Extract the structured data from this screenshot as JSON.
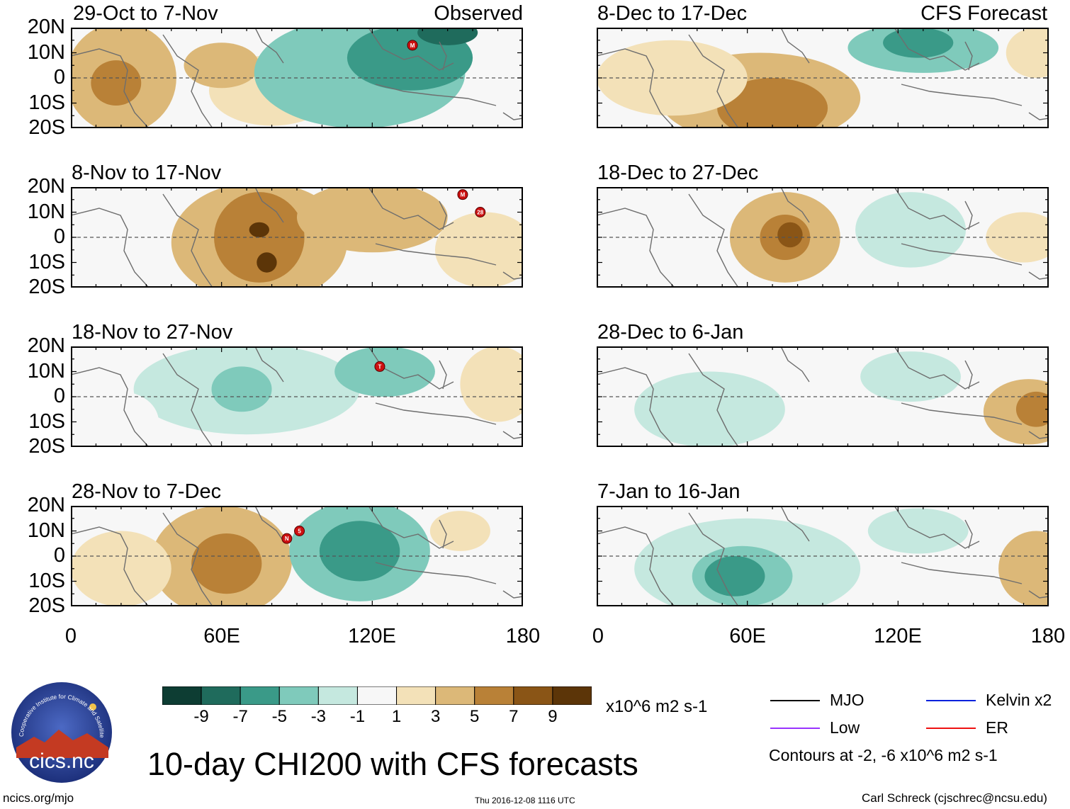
{
  "chart_data": {
    "type": "heatmap",
    "title": "10-day CHI200 with CFS forecasts",
    "variable": "CHI200",
    "units": "x10^6 m2 s-1",
    "x_ticks": [
      "0",
      "60E",
      "120E",
      "180"
    ],
    "y_ticks": [
      "20N",
      "10N",
      "0",
      "10S",
      "20S"
    ],
    "xlim": [
      0,
      180
    ],
    "ylim": [
      -20,
      20
    ],
    "colorbar": {
      "labels": [
        "-9",
        "-7",
        "-5",
        "-3",
        "-1",
        "1",
        "3",
        "5",
        "7",
        "9"
      ],
      "colors": [
        "#0d3d33",
        "#1f6b5c",
        "#3a9a88",
        "#7fcabb",
        "#c5e8df",
        "#f7f7f7",
        "#f3e1b8",
        "#dcb878",
        "#b98137",
        "#8a5516",
        "#5c3508"
      ]
    },
    "contours_note": "Contours at -2, -6 x10^6 m2 s-1",
    "legend": [
      {
        "label": "MJO",
        "color": "#000000"
      },
      {
        "label": "Kelvin x2",
        "color": "#0022dd"
      },
      {
        "label": "Low",
        "color": "#9933ff"
      },
      {
        "label": "ER",
        "color": "#ee1111"
      }
    ],
    "observed_label": "Observed",
    "forecast_label": "CFS Forecast",
    "panels": [
      {
        "title": "29-Oct to 7-Nov",
        "kind": "observed",
        "blobs": [
          {
            "lon": 20,
            "lat": 0,
            "rx": 22,
            "ry": 22,
            "level": 7
          },
          {
            "lon": 18,
            "lat": -2,
            "rx": 10,
            "ry": 9,
            "level": 8
          },
          {
            "lon": 80,
            "lat": -5,
            "rx": 25,
            "ry": 14,
            "level": 6
          },
          {
            "lon": 60,
            "lat": 5,
            "rx": 15,
            "ry": 9,
            "level": 7
          },
          {
            "lon": 115,
            "lat": 2,
            "rx": 42,
            "ry": 22,
            "level": 3
          },
          {
            "lon": 135,
            "lat": 8,
            "rx": 25,
            "ry": 13,
            "level": 2
          },
          {
            "lon": 150,
            "lat": 18,
            "rx": 12,
            "ry": 5,
            "level": 1
          }
        ],
        "tcs": [
          {
            "lon": 136,
            "lat": 13,
            "label": "M"
          }
        ]
      },
      {
        "title": "8-Nov to 17-Nov",
        "kind": "observed",
        "blobs": [
          {
            "lon": 75,
            "lat": -2,
            "rx": 35,
            "ry": 24,
            "level": 7
          },
          {
            "lon": 75,
            "lat": 0,
            "rx": 18,
            "ry": 18,
            "level": 8
          },
          {
            "lon": 75,
            "lat": 3,
            "rx": 4,
            "ry": 3,
            "level": 10
          },
          {
            "lon": 78,
            "lat": -10,
            "rx": 4,
            "ry": 4,
            "level": 10
          },
          {
            "lon": 120,
            "lat": 8,
            "rx": 30,
            "ry": 14,
            "level": 7
          },
          {
            "lon": 165,
            "lat": -5,
            "rx": 20,
            "ry": 15,
            "level": 6
          }
        ],
        "tcs": [
          {
            "lon": 156,
            "lat": 17,
            "label": "M"
          },
          {
            "lon": 163,
            "lat": 10,
            "label": "28"
          }
        ]
      },
      {
        "title": "18-Nov to 27-Nov",
        "kind": "observed",
        "blobs": [
          {
            "lon": 70,
            "lat": 3,
            "rx": 45,
            "ry": 18,
            "level": 4
          },
          {
            "lon": 68,
            "lat": 3,
            "rx": 12,
            "ry": 9,
            "level": 3
          },
          {
            "lon": 125,
            "lat": 10,
            "rx": 20,
            "ry": 10,
            "level": 3
          },
          {
            "lon": 170,
            "lat": 5,
            "rx": 15,
            "ry": 15,
            "level": 6
          },
          {
            "lon": 20,
            "lat": -10,
            "rx": 15,
            "ry": 12,
            "level": 5
          }
        ],
        "tcs": [
          {
            "lon": 123,
            "lat": 12,
            "label": "T"
          }
        ]
      },
      {
        "title": "28-Nov to 7-Dec",
        "kind": "observed",
        "blobs": [
          {
            "lon": 60,
            "lat": -2,
            "rx": 28,
            "ry": 22,
            "level": 7
          },
          {
            "lon": 62,
            "lat": -3,
            "rx": 14,
            "ry": 12,
            "level": 8
          },
          {
            "lon": 115,
            "lat": 2,
            "rx": 28,
            "ry": 20,
            "level": 3
          },
          {
            "lon": 115,
            "lat": 2,
            "rx": 16,
            "ry": 12,
            "level": 2
          },
          {
            "lon": 155,
            "lat": 10,
            "rx": 12,
            "ry": 8,
            "level": 6
          },
          {
            "lon": 20,
            "lat": -5,
            "rx": 20,
            "ry": 15,
            "level": 6
          }
        ],
        "tcs": [
          {
            "lon": 86,
            "lat": 7,
            "label": "N"
          },
          {
            "lon": 91,
            "lat": 10,
            "label": "5"
          }
        ]
      },
      {
        "title": "8-Dec to 17-Dec",
        "kind": "forecast",
        "blobs": [
          {
            "lon": 65,
            "lat": -8,
            "rx": 40,
            "ry": 18,
            "level": 7
          },
          {
            "lon": 70,
            "lat": -12,
            "rx": 22,
            "ry": 12,
            "level": 8
          },
          {
            "lon": 130,
            "lat": 12,
            "rx": 30,
            "ry": 10,
            "level": 3
          },
          {
            "lon": 128,
            "lat": 14,
            "rx": 14,
            "ry": 6,
            "level": 2
          },
          {
            "lon": 30,
            "lat": 0,
            "rx": 30,
            "ry": 15,
            "level": 6
          },
          {
            "lon": 175,
            "lat": 10,
            "rx": 12,
            "ry": 10,
            "level": 6
          }
        ],
        "tcs": []
      },
      {
        "title": "18-Dec to 27-Dec",
        "kind": "forecast",
        "blobs": [
          {
            "lon": 75,
            "lat": 0,
            "rx": 22,
            "ry": 18,
            "level": 7
          },
          {
            "lon": 75,
            "lat": 0,
            "rx": 10,
            "ry": 9,
            "level": 8
          },
          {
            "lon": 77,
            "lat": 1,
            "rx": 5,
            "ry": 5,
            "level": 9
          },
          {
            "lon": 125,
            "lat": 3,
            "rx": 22,
            "ry": 15,
            "level": 4
          },
          {
            "lon": 170,
            "lat": 0,
            "rx": 15,
            "ry": 10,
            "level": 6
          }
        ],
        "tcs": []
      },
      {
        "title": "28-Dec to 6-Jan",
        "kind": "forecast",
        "blobs": [
          {
            "lon": 45,
            "lat": -5,
            "rx": 30,
            "ry": 15,
            "level": 4
          },
          {
            "lon": 125,
            "lat": 8,
            "rx": 20,
            "ry": 10,
            "level": 4
          },
          {
            "lon": 172,
            "lat": -6,
            "rx": 18,
            "ry": 13,
            "level": 7
          },
          {
            "lon": 175,
            "lat": -5,
            "rx": 8,
            "ry": 7,
            "level": 8
          }
        ],
        "tcs": []
      },
      {
        "title": "7-Jan to 16-Jan",
        "kind": "forecast",
        "blobs": [
          {
            "lon": 60,
            "lat": -5,
            "rx": 45,
            "ry": 20,
            "level": 4
          },
          {
            "lon": 58,
            "lat": -8,
            "rx": 20,
            "ry": 12,
            "level": 3
          },
          {
            "lon": 55,
            "lat": -8,
            "rx": 12,
            "ry": 8,
            "level": 2
          },
          {
            "lon": 128,
            "lat": 10,
            "rx": 20,
            "ry": 9,
            "level": 4
          },
          {
            "lon": 175,
            "lat": -5,
            "rx": 15,
            "ry": 15,
            "level": 7
          }
        ],
        "tcs": []
      }
    ]
  },
  "logo": {
    "text": "cics.nc",
    "arc_text": "Cooperative Institute for Climate and Satellites"
  },
  "footer": {
    "url": "ncics.org/mjo",
    "timestamp": "Thu 2016-12-08 1116 UTC",
    "author": "Carl Schreck (cjschrec@ncsu.edu)"
  }
}
